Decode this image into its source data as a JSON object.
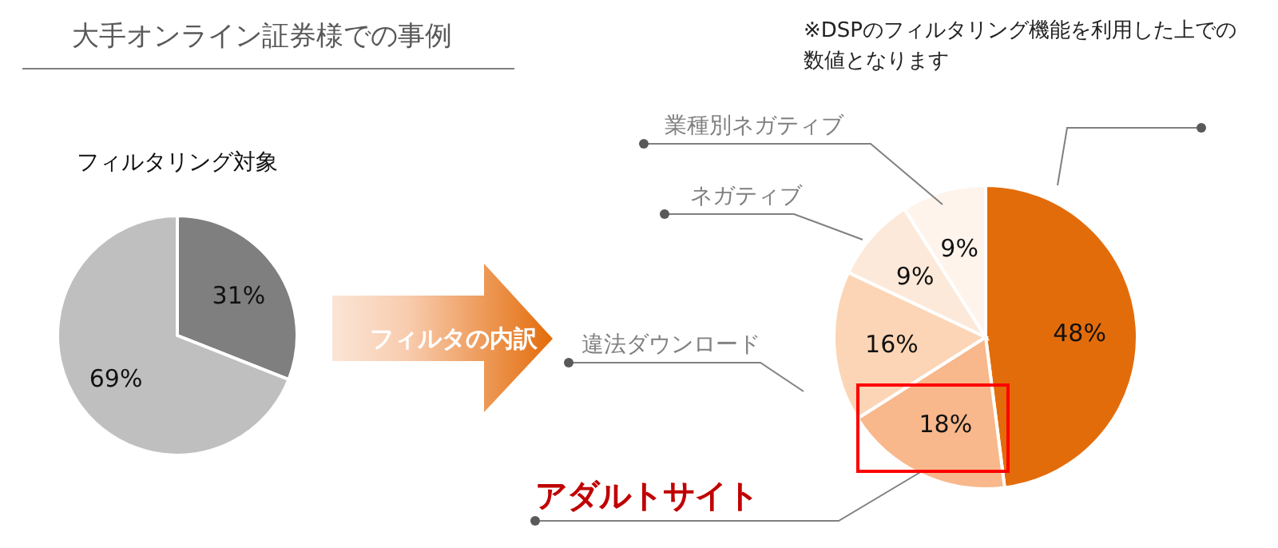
{
  "chart_data": [
    {
      "type": "pie",
      "title": "フィルタリング対象",
      "annotations": [
        "大手オンライン証券様での事例"
      ],
      "categories": [
        null,
        null
      ],
      "values": [
        31,
        69
      ],
      "colors": [
        "#7f7f7f",
        "#bfbfbf"
      ],
      "value_labels": [
        "31%",
        "69%"
      ]
    },
    {
      "type": "pie",
      "title": "フィルタの内訳",
      "annotations": [
        "※DSPのフィルタリング機能を利用した上での数値となります"
      ],
      "categories": [
        null,
        "アダルトサイト",
        "違法ダウンロード",
        "ネガティブ",
        "業種別ネガティブ"
      ],
      "values": [
        48,
        18,
        16,
        9,
        9
      ],
      "colors": [
        "#e36c0a",
        "#f8b88b",
        "#fbd5b5",
        "#fde9d9",
        "#fef4ec"
      ],
      "value_labels": [
        "48%",
        "18%",
        "16%",
        "9%",
        "9%"
      ]
    }
  ]
}
